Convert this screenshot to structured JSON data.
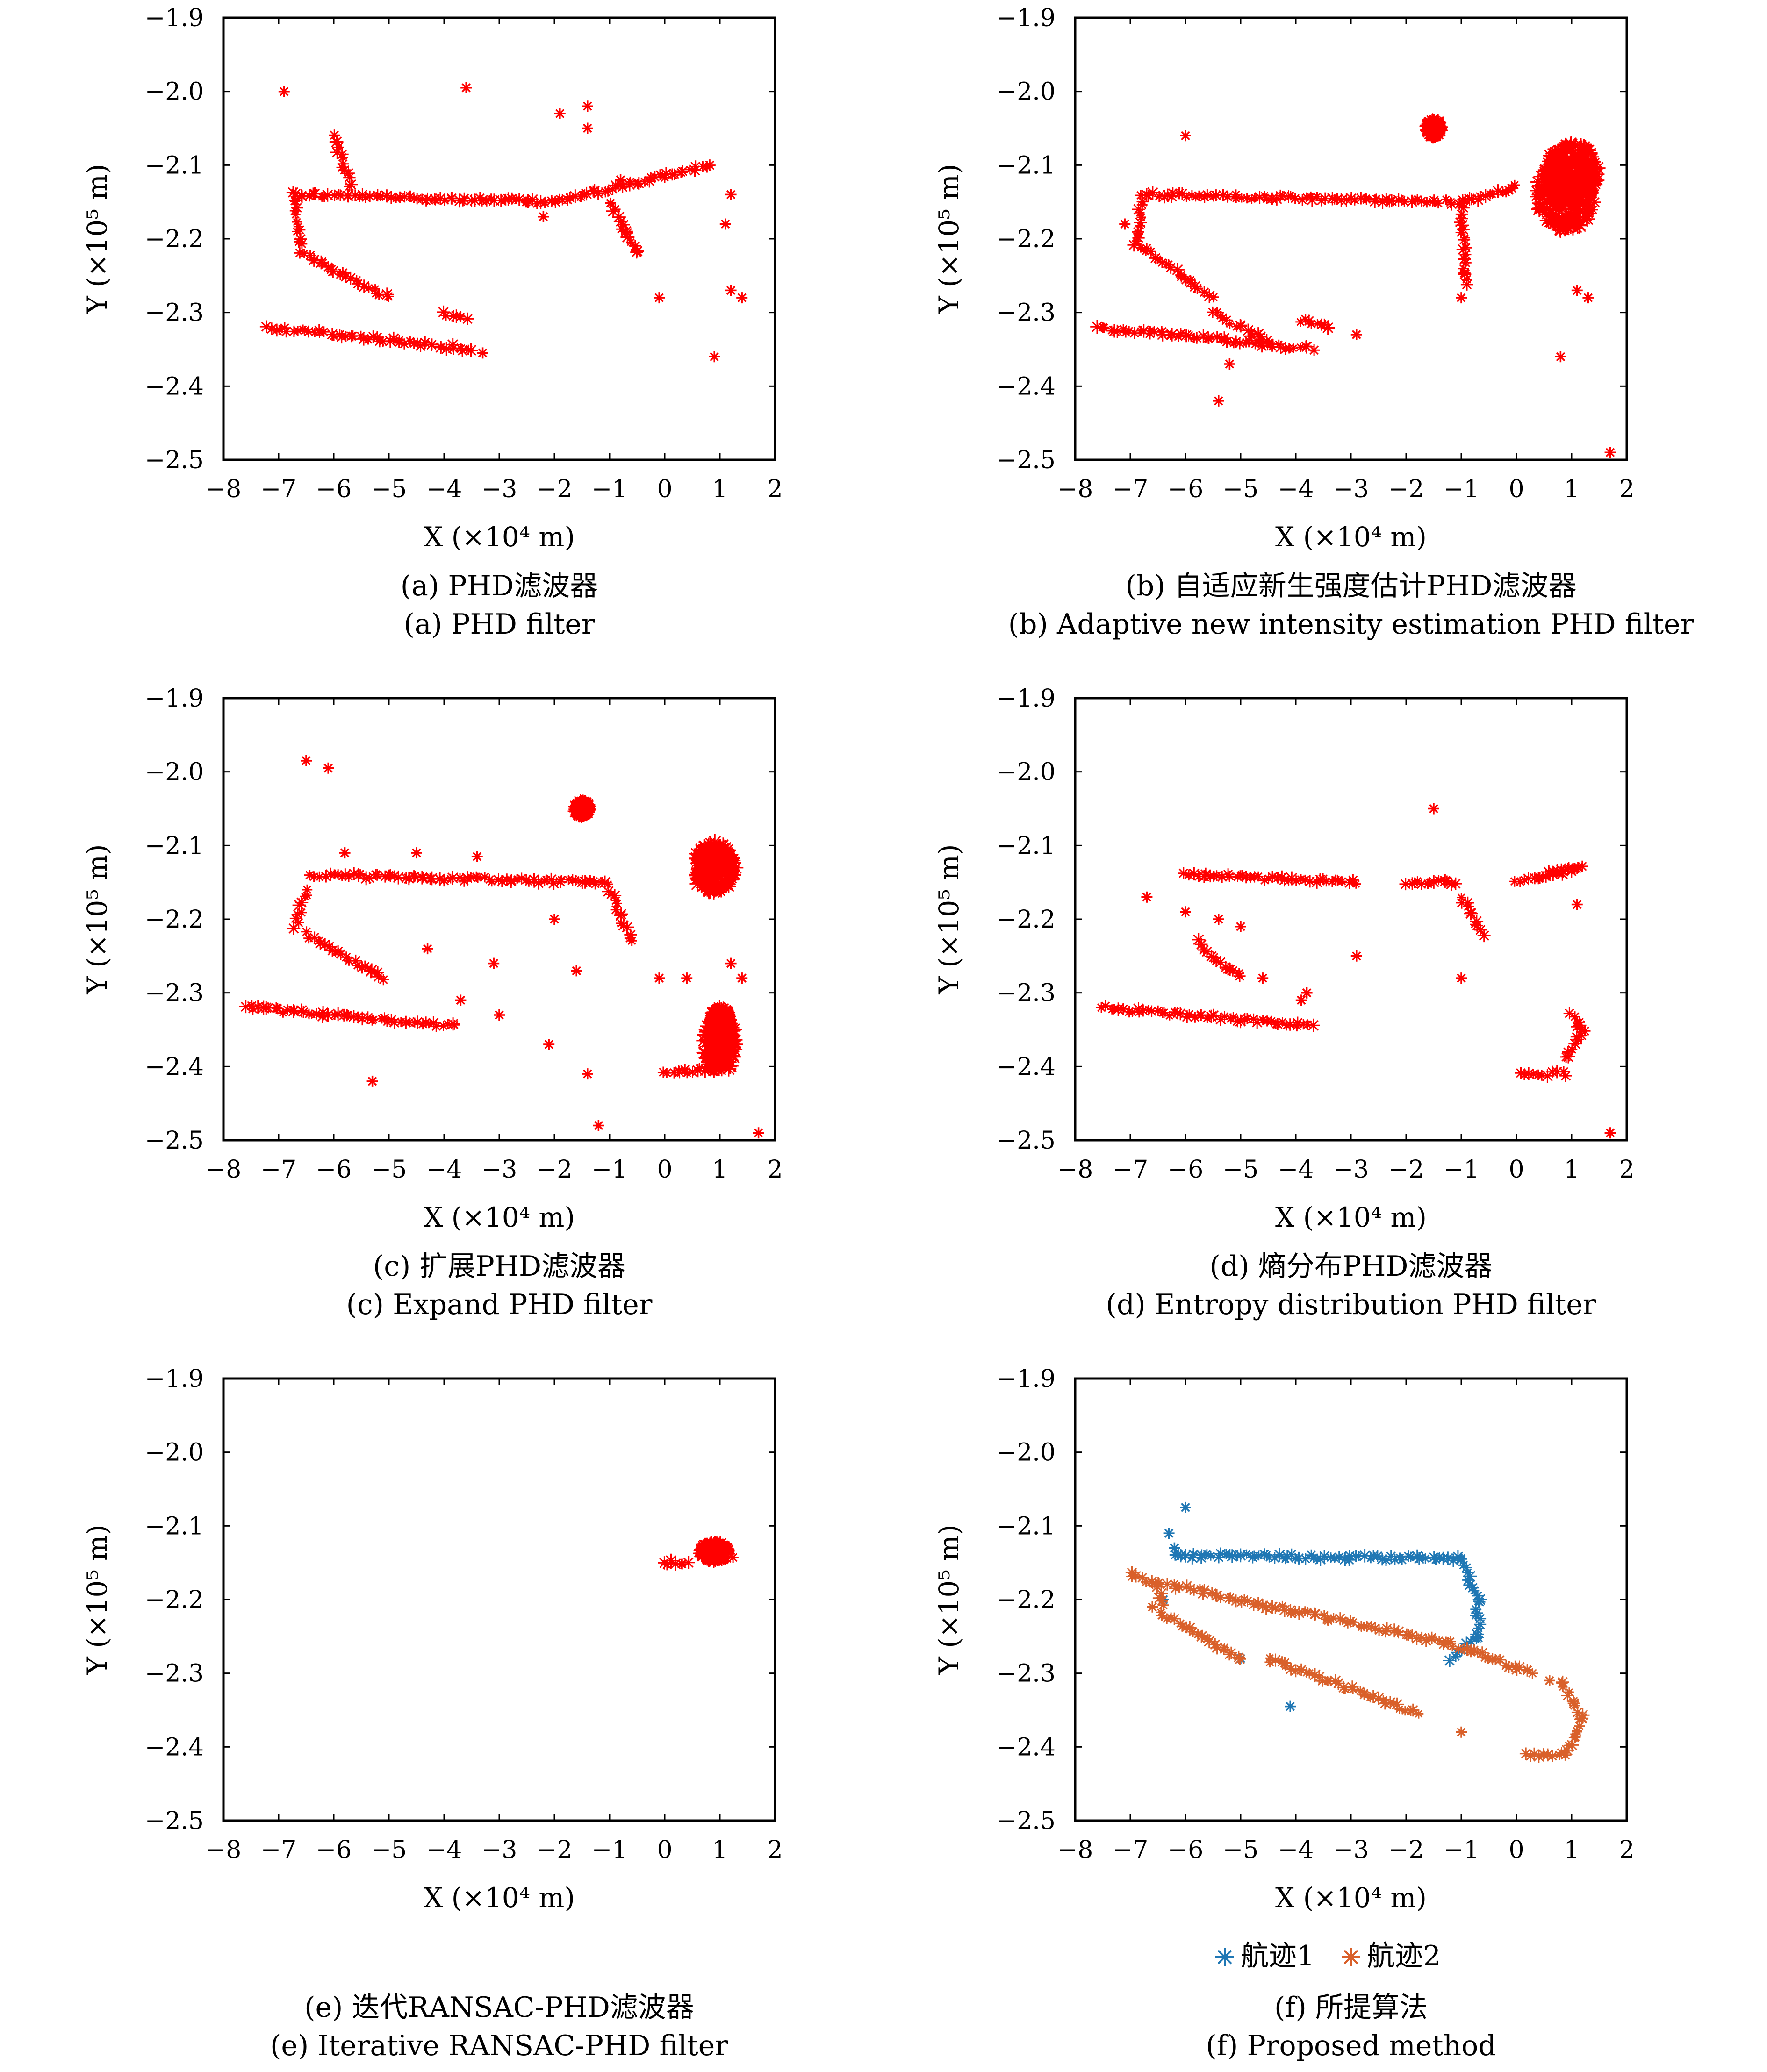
{
  "chart_data": [
    {
      "type": "scatter",
      "xlabel": "X (×10⁴ m)",
      "ylabel": "Y (×10⁵ m)",
      "xlim": [
        -8,
        2
      ],
      "ylim": [
        -2.5,
        -1.9
      ],
      "xticks": [
        "−8",
        "−7",
        "−6",
        "−5",
        "−4",
        "−3",
        "−2",
        "−1",
        "0",
        "1",
        "2"
      ],
      "yticks": [
        "−1.9",
        "−2.0",
        "−2.1",
        "−2.2",
        "−2.3",
        "−2.4",
        "−2.5"
      ],
      "caption_cn": "(a) PHD滤波器",
      "caption_en": "(a) PHD filter",
      "series": [
        {
          "color": "#ff0000",
          "segments": [
            [
              [
                -6.7,
                -2.14
              ],
              [
                -2.0,
                -2.15
              ]
            ],
            [
              [
                -2.0,
                -2.15
              ],
              [
                0.8,
                -2.1
              ]
            ],
            [
              [
                -1.0,
                -2.15
              ],
              [
                -0.5,
                -2.22
              ]
            ],
            [
              [
                -6.7,
                -2.14
              ],
              [
                -6.6,
                -2.21
              ]
            ],
            [
              [
                -6.6,
                -2.22
              ],
              [
                -5.0,
                -2.28
              ]
            ],
            [
              [
                -7.2,
                -2.32
              ],
              [
                -3.5,
                -2.35
              ]
            ],
            [
              [
                -6.0,
                -2.06
              ],
              [
                -5.7,
                -2.13
              ]
            ],
            [
              [
                -4.0,
                -2.3
              ],
              [
                -3.6,
                -2.31
              ]
            ]
          ],
          "points": [
            [
              -6.9,
              -2.0
            ],
            [
              -3.6,
              -1.995
            ],
            [
              -1.9,
              -2.03
            ],
            [
              -1.4,
              -2.02
            ],
            [
              -1.4,
              -2.05
            ],
            [
              -0.1,
              -2.28
            ],
            [
              1.2,
              -2.14
            ],
            [
              1.1,
              -2.18
            ],
            [
              1.2,
              -2.27
            ],
            [
              1.4,
              -2.28
            ],
            [
              0.9,
              -2.36
            ],
            [
              -3.3,
              -2.355
            ],
            [
              -2.2,
              -2.17
            ],
            [
              -0.8,
              -2.12
            ]
          ]
        }
      ]
    },
    {
      "type": "scatter",
      "xlabel": "X (×10⁴ m)",
      "ylabel": "Y (×10⁵ m)",
      "xlim": [
        -8,
        2
      ],
      "ylim": [
        -2.5,
        -1.9
      ],
      "xticks": [
        "−8",
        "−7",
        "−6",
        "−5",
        "−4",
        "−3",
        "−2",
        "−1",
        "0",
        "1",
        "2"
      ],
      "yticks": [
        "−1.9",
        "−2.0",
        "−2.1",
        "−2.2",
        "−2.3",
        "−2.4",
        "−2.5"
      ],
      "caption_cn": "(b) 自适应新生强度估计PHD滤波器",
      "caption_en": "(b) Adaptive new intensity estimation PHD filter",
      "series": [
        {
          "color": "#ff0000",
          "segments": [
            [
              [
                -6.8,
                -2.14
              ],
              [
                -1.0,
                -2.15
              ]
            ],
            [
              [
                -1.0,
                -2.15
              ],
              [
                0.0,
                -2.13
              ]
            ],
            [
              [
                -1.0,
                -2.16
              ],
              [
                -0.9,
                -2.26
              ]
            ],
            [
              [
                -6.8,
                -2.15
              ],
              [
                -6.9,
                -2.21
              ]
            ],
            [
              [
                -6.8,
                -2.21
              ],
              [
                -5.5,
                -2.28
              ]
            ],
            [
              [
                -7.6,
                -2.32
              ],
              [
                -3.7,
                -2.35
              ]
            ],
            [
              [
                -5.5,
                -2.3
              ],
              [
                -4.5,
                -2.34
              ]
            ],
            [
              [
                -3.9,
                -2.31
              ],
              [
                -3.4,
                -2.32
              ]
            ]
          ],
          "blobs": [
            [
              0.9,
              -2.14,
              0.55,
              0.05
            ],
            [
              -1.5,
              -2.05,
              0.12,
              0.01
            ],
            [
              1.0,
              -2.11,
              0.5,
              0.04
            ]
          ],
          "points": [
            [
              -6.0,
              -2.06
            ],
            [
              -5.4,
              -2.42
            ],
            [
              -1.0,
              -2.28
            ],
            [
              1.7,
              -2.49
            ],
            [
              0.8,
              -2.36
            ],
            [
              1.3,
              -2.28
            ],
            [
              1.1,
              -2.27
            ],
            [
              -2.9,
              -2.33
            ],
            [
              -5.2,
              -2.37
            ],
            [
              -7.1,
              -2.18
            ]
          ]
        }
      ]
    },
    {
      "type": "scatter",
      "xlabel": "X (×10⁴ m)",
      "ylabel": "Y (×10⁵ m)",
      "xlim": [
        -8,
        2
      ],
      "ylim": [
        -2.5,
        -1.9
      ],
      "xticks": [
        "−8",
        "−7",
        "−6",
        "−5",
        "−4",
        "−3",
        "−2",
        "−1",
        "0",
        "1",
        "2"
      ],
      "yticks": [
        "−1.9",
        "−2.0",
        "−2.1",
        "−2.2",
        "−2.3",
        "−2.4",
        "−2.5"
      ],
      "caption_cn": "(c) 扩展PHD滤波器",
      "caption_en": "(c) Expand PHD filter",
      "series": [
        {
          "color": "#ff0000",
          "segments": [
            [
              [
                -6.4,
                -2.14
              ],
              [
                -1.0,
                -2.15
              ]
            ],
            [
              [
                -1.0,
                -2.16
              ],
              [
                -0.6,
                -2.23
              ]
            ],
            [
              [
                -6.5,
                -2.16
              ],
              [
                -6.7,
                -2.21
              ]
            ],
            [
              [
                -6.5,
                -2.22
              ],
              [
                -5.1,
                -2.28
              ]
            ],
            [
              [
                -7.6,
                -2.32
              ],
              [
                -3.8,
                -2.345
              ]
            ],
            [
              [
                0.0,
                -2.41
              ],
              [
                1.1,
                -2.4
              ]
            ]
          ],
          "blobs": [
            [
              0.9,
              -2.13,
              0.4,
              0.035
            ],
            [
              -1.5,
              -2.05,
              0.12,
              0.01
            ],
            [
              1.0,
              -2.37,
              0.3,
              0.04
            ],
            [
              1.0,
              -2.34,
              0.2,
              0.02
            ]
          ],
          "points": [
            [
              -6.5,
              -1.985
            ],
            [
              -6.1,
              -1.995
            ],
            [
              -5.8,
              -2.11
            ],
            [
              -4.5,
              -2.11
            ],
            [
              -3.4,
              -2.115
            ],
            [
              -2.0,
              -2.2
            ],
            [
              -1.6,
              -2.27
            ],
            [
              -1.4,
              -2.41
            ],
            [
              -1.2,
              -2.48
            ],
            [
              -0.1,
              -2.28
            ],
            [
              0.4,
              -2.28
            ],
            [
              1.2,
              -2.26
            ],
            [
              1.4,
              -2.28
            ],
            [
              1.7,
              -2.49
            ],
            [
              -5.3,
              -2.42
            ],
            [
              -3.0,
              -2.33
            ],
            [
              -2.1,
              -2.37
            ],
            [
              -3.7,
              -2.31
            ],
            [
              -4.3,
              -2.24
            ],
            [
              -3.1,
              -2.26
            ]
          ]
        }
      ]
    },
    {
      "type": "scatter",
      "xlabel": "X (×10⁴ m)",
      "ylabel": "Y (×10⁵ m)",
      "xlim": [
        -8,
        2
      ],
      "ylim": [
        -2.5,
        -1.9
      ],
      "xticks": [
        "−8",
        "−7",
        "−6",
        "−5",
        "−4",
        "−3",
        "−2",
        "−1",
        "0",
        "1",
        "2"
      ],
      "yticks": [
        "−1.9",
        "−2.0",
        "−2.1",
        "−2.2",
        "−2.3",
        "−2.4",
        "−2.5"
      ],
      "caption_cn": "(d) 熵分布PHD滤波器",
      "caption_en": "(d) Entropy distribution PHD filter",
      "series": [
        {
          "color": "#ff0000",
          "segments": [
            [
              [
                -6.0,
                -2.14
              ],
              [
                -2.9,
                -2.15
              ]
            ],
            [
              [
                -2.0,
                -2.15
              ],
              [
                -1.1,
                -2.15
              ]
            ],
            [
              [
                -1.0,
                -2.17
              ],
              [
                -0.6,
                -2.22
              ]
            ],
            [
              [
                -5.8,
                -2.23
              ],
              [
                -5.0,
                -2.28
              ]
            ],
            [
              [
                -7.5,
                -2.32
              ],
              [
                -3.7,
                -2.345
              ]
            ],
            [
              [
                0.0,
                -2.15
              ],
              [
                1.1,
                -2.13
              ]
            ],
            [
              [
                0.5,
                -2.14
              ],
              [
                1.2,
                -2.13
              ]
            ],
            [
              [
                0.1,
                -2.41
              ],
              [
                0.9,
                -2.41
              ]
            ],
            [
              [
                0.9,
                -2.39
              ],
              [
                1.2,
                -2.35
              ]
            ],
            [
              [
                1.0,
                -2.33
              ],
              [
                1.2,
                -2.35
              ]
            ]
          ],
          "points": [
            [
              -1.5,
              -2.05
            ],
            [
              -6.7,
              -2.17
            ],
            [
              -6.0,
              -2.19
            ],
            [
              -5.4,
              -2.2
            ],
            [
              -5.0,
              -2.21
            ],
            [
              -4.6,
              -2.28
            ],
            [
              -3.9,
              -2.31
            ],
            [
              -2.9,
              -2.25
            ],
            [
              -1.0,
              -2.28
            ],
            [
              1.1,
              -2.18
            ],
            [
              1.7,
              -2.49
            ],
            [
              -3.8,
              -2.3
            ]
          ]
        }
      ]
    },
    {
      "type": "scatter",
      "xlabel": "X (×10⁴ m)",
      "ylabel": "Y (×10⁵ m)",
      "xlim": [
        -8,
        2
      ],
      "ylim": [
        -2.5,
        -1.9
      ],
      "xticks": [
        "−8",
        "−7",
        "−6",
        "−5",
        "−4",
        "−3",
        "−2",
        "−1",
        "0",
        "1",
        "2"
      ],
      "yticks": [
        "−1.9",
        "−2.0",
        "−2.1",
        "−2.2",
        "−2.3",
        "−2.4",
        "−2.5"
      ],
      "caption_cn": "(e) 迭代RANSAC-PHD滤波器",
      "caption_en": "(e) Iterative RANSAC-PHD filter",
      "series": [
        {
          "color": "#ff0000",
          "segments": [
            [
              [
                0.0,
                -2.15
              ],
              [
                0.4,
                -2.15
              ]
            ],
            [
              [
                0.6,
                -2.135
              ],
              [
                1.2,
                -2.14
              ]
            ]
          ],
          "blobs": [
            [
              0.9,
              -2.135,
              0.25,
              0.012
            ]
          ],
          "points": []
        }
      ]
    },
    {
      "type": "scatter",
      "xlabel": "X (×10⁴ m)",
      "ylabel": "Y (×10⁵ m)",
      "xlim": [
        -8,
        2
      ],
      "ylim": [
        -2.5,
        -1.9
      ],
      "xticks": [
        "−8",
        "−7",
        "−6",
        "−5",
        "−4",
        "−3",
        "−2",
        "−1",
        "0",
        "1",
        "2"
      ],
      "yticks": [
        "−1.9",
        "−2.0",
        "−2.1",
        "−2.2",
        "−2.3",
        "−2.4",
        "−2.5"
      ],
      "caption_cn": "(f) 所提算法",
      "caption_en": "(f) Proposed method",
      "legend": [
        {
          "name": "航迹1",
          "color": "#1f77b4"
        },
        {
          "name": "航迹2",
          "color": "#d9602a"
        }
      ],
      "series": [
        {
          "name": "航迹1",
          "color": "#1f77b4",
          "segments": [
            [
              [
                -6.2,
                -2.14
              ],
              [
                -1.0,
                -2.145
              ]
            ],
            [
              [
                -1.0,
                -2.145
              ],
              [
                -0.7,
                -2.2
              ]
            ],
            [
              [
                -0.7,
                -2.2
              ],
              [
                -0.7,
                -2.25
              ]
            ],
            [
              [
                -0.7,
                -2.25
              ],
              [
                -1.2,
                -2.28
              ]
            ]
          ],
          "points": [
            [
              -6.0,
              -2.075
            ],
            [
              -6.3,
              -2.11
            ],
            [
              -6.2,
              -2.13
            ],
            [
              -4.1,
              -2.345
            ],
            [
              -5.0,
              -2.28
            ],
            [
              -6.4,
              -2.2
            ]
          ]
        },
        {
          "name": "航迹2",
          "color": "#d9602a",
          "segments": [
            [
              [
                -7.0,
                -2.165
              ],
              [
                -6.5,
                -2.18
              ]
            ],
            [
              [
                -6.5,
                -2.18
              ],
              [
                -6.4,
                -2.22
              ]
            ],
            [
              [
                -6.4,
                -2.22
              ],
              [
                -5.0,
                -2.28
              ]
            ],
            [
              [
                -6.3,
                -2.18
              ],
              [
                -1.2,
                -2.26
              ]
            ],
            [
              [
                -4.5,
                -2.28
              ],
              [
                -1.8,
                -2.355
              ]
            ],
            [
              [
                -1.2,
                -2.26
              ],
              [
                0.3,
                -2.3
              ]
            ],
            [
              [
                0.8,
                -2.31
              ],
              [
                1.2,
                -2.36
              ]
            ],
            [
              [
                1.2,
                -2.36
              ],
              [
                0.9,
                -2.41
              ]
            ],
            [
              [
                0.9,
                -2.41
              ],
              [
                0.2,
                -2.41
              ]
            ]
          ],
          "points": [
            [
              -1.0,
              -2.38
            ],
            [
              0.6,
              -2.31
            ],
            [
              -6.6,
              -2.21
            ]
          ]
        }
      ]
    }
  ]
}
